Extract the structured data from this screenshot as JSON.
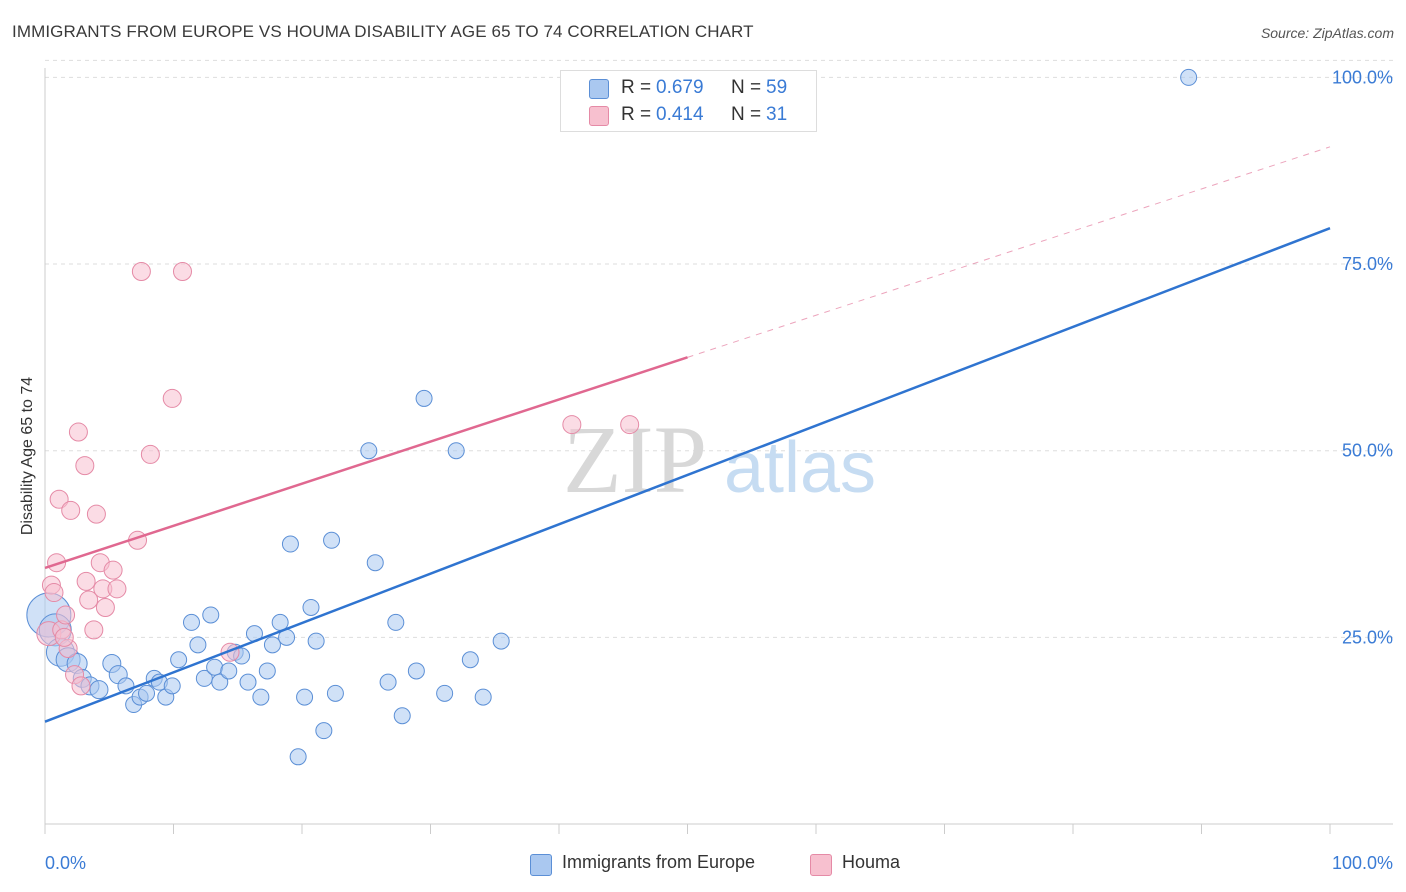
{
  "title": "IMMIGRANTS FROM EUROPE VS HOUMA DISABILITY AGE 65 TO 74 CORRELATION CHART",
  "source": "Source: ZipAtlas.com",
  "watermark": {
    "zip": "ZIP",
    "atlas": "atlas"
  },
  "legend": {
    "rows": [
      {
        "r_label": "R =",
        "r_value": "0.679",
        "n_label": "N =",
        "n_value": "59"
      },
      {
        "r_label": "R =",
        "r_value": "0.414",
        "n_label": "N =",
        "n_value": "31"
      }
    ],
    "bottom": [
      "Immigrants from Europe",
      "Houma"
    ]
  },
  "colors": {
    "blue_fill": "#aac8f0",
    "blue_stroke": "#5b8fd6",
    "blue_line": "#2f74d0",
    "pink_fill": "#f7c0cf",
    "pink_stroke": "#e58aa6",
    "pink_line": "#e06890",
    "tick_text": "#3a7bd5",
    "grid": "#dddddd"
  },
  "chart_data": {
    "type": "scatter",
    "title": "IMMIGRANTS FROM EUROPE VS HOUMA DISABILITY AGE 65 TO 74 CORRELATION CHART",
    "xlabel": "",
    "ylabel": "Disability Age 65 to 74",
    "xlim": [
      0,
      100
    ],
    "ylim": [
      0,
      103
    ],
    "x_tick_labels": [
      "0.0%",
      "100.0%"
    ],
    "y_ticks": [
      25,
      50,
      75,
      100
    ],
    "y_tick_labels": [
      "25.0%",
      "50.0%",
      "75.0%",
      "100.0%"
    ],
    "grid": true,
    "series": [
      {
        "name": "Immigrants from Europe",
        "r": 0.679,
        "n": 59,
        "trend": {
          "x0": 0,
          "y0": 13.7,
          "x1": 100,
          "y1": 79.8
        },
        "points": [
          [
            0.3,
            28.0,
            22
          ],
          [
            0.8,
            26.0,
            16
          ],
          [
            1.2,
            23.0,
            14
          ],
          [
            1.8,
            22.0,
            12
          ],
          [
            2.5,
            21.5,
            10
          ],
          [
            2.9,
            19.5,
            9
          ],
          [
            3.5,
            18.5,
            9
          ],
          [
            4.2,
            18.0,
            9
          ],
          [
            5.2,
            21.5,
            9
          ],
          [
            5.7,
            20.0,
            9
          ],
          [
            6.3,
            18.5,
            8
          ],
          [
            6.9,
            16.0,
            8
          ],
          [
            7.4,
            17.0,
            8
          ],
          [
            7.9,
            17.5,
            8
          ],
          [
            8.5,
            19.5,
            8
          ],
          [
            8.9,
            19.0,
            8
          ],
          [
            9.4,
            17.0,
            8
          ],
          [
            9.9,
            18.5,
            8
          ],
          [
            10.4,
            22.0,
            8
          ],
          [
            11.4,
            27.0,
            8
          ],
          [
            11.9,
            24.0,
            8
          ],
          [
            12.4,
            19.5,
            8
          ],
          [
            12.9,
            28.0,
            8
          ],
          [
            13.2,
            21.0,
            8
          ],
          [
            13.6,
            19.0,
            8
          ],
          [
            14.3,
            20.5,
            8
          ],
          [
            14.8,
            23.0,
            8
          ],
          [
            15.3,
            22.5,
            8
          ],
          [
            15.8,
            19.0,
            8
          ],
          [
            16.3,
            25.5,
            8
          ],
          [
            16.8,
            17.0,
            8
          ],
          [
            17.3,
            20.5,
            8
          ],
          [
            17.7,
            24.0,
            8
          ],
          [
            18.3,
            27.0,
            8
          ],
          [
            18.8,
            25.0,
            8
          ],
          [
            19.1,
            37.5,
            8
          ],
          [
            19.7,
            9.0,
            8
          ],
          [
            20.2,
            17.0,
            8
          ],
          [
            20.7,
            29.0,
            8
          ],
          [
            21.1,
            24.5,
            8
          ],
          [
            21.7,
            12.5,
            8
          ],
          [
            22.3,
            38.0,
            8
          ],
          [
            22.6,
            17.5,
            8
          ],
          [
            25.2,
            50.0,
            8
          ],
          [
            25.7,
            35.0,
            8
          ],
          [
            26.7,
            19.0,
            8
          ],
          [
            27.3,
            27.0,
            8
          ],
          [
            27.8,
            14.5,
            8
          ],
          [
            28.9,
            20.5,
            8
          ],
          [
            29.5,
            57.0,
            8
          ],
          [
            31.1,
            17.5,
            8
          ],
          [
            32.0,
            50.0,
            8
          ],
          [
            33.1,
            22.0,
            8
          ],
          [
            34.1,
            17.0,
            8
          ],
          [
            35.5,
            24.5,
            8
          ],
          [
            89.0,
            100.0,
            8
          ]
        ]
      },
      {
        "name": "Houma",
        "r": 0.414,
        "n": 31,
        "trend": {
          "x0": 0,
          "y0": 34.3,
          "x1": 50,
          "y1": 62.5,
          "dashed_to_x": 100,
          "dashed_to_y": 90.7
        },
        "points": [
          [
            0.3,
            25.5,
            12
          ],
          [
            0.5,
            32.0,
            9
          ],
          [
            0.9,
            35.0,
            9
          ],
          [
            1.1,
            43.5,
            9
          ],
          [
            1.3,
            26.0,
            9
          ],
          [
            1.6,
            28.0,
            9
          ],
          [
            1.8,
            23.5,
            9
          ],
          [
            2.0,
            42.0,
            9
          ],
          [
            2.3,
            20.0,
            9
          ],
          [
            2.6,
            52.5,
            9
          ],
          [
            2.8,
            18.5,
            9
          ],
          [
            3.1,
            48.0,
            9
          ],
          [
            3.2,
            32.5,
            9
          ],
          [
            3.4,
            30.0,
            9
          ],
          [
            3.8,
            26.0,
            9
          ],
          [
            4.0,
            41.5,
            9
          ],
          [
            4.3,
            35.0,
            9
          ],
          [
            4.5,
            31.5,
            9
          ],
          [
            4.7,
            29.0,
            9
          ],
          [
            5.3,
            34.0,
            9
          ],
          [
            5.6,
            31.5,
            9
          ],
          [
            7.2,
            38.0,
            9
          ],
          [
            7.5,
            74.0,
            9
          ],
          [
            8.2,
            49.5,
            9
          ],
          [
            9.9,
            57.0,
            9
          ],
          [
            10.7,
            74.0,
            9
          ],
          [
            14.4,
            23.0,
            9
          ],
          [
            0.7,
            31.0,
            9
          ],
          [
            1.5,
            25.0,
            9
          ],
          [
            41.0,
            53.5,
            9
          ],
          [
            45.5,
            53.5,
            9
          ]
        ]
      }
    ]
  }
}
